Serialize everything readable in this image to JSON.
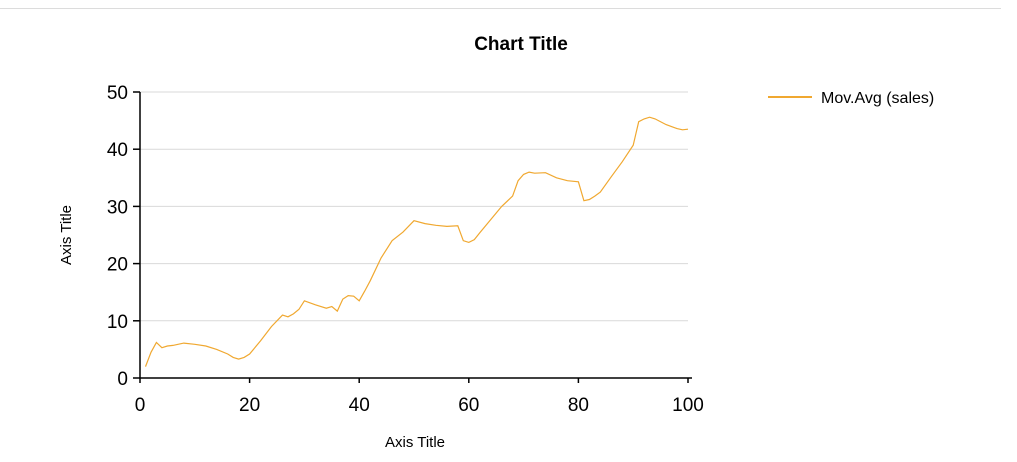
{
  "chart_data": {
    "type": "line",
    "title": "Chart Title",
    "xlabel": "Axis Title",
    "ylabel": "Axis Title",
    "xlim": [
      0,
      100
    ],
    "ylim": [
      0,
      50
    ],
    "xticks": [
      0,
      20,
      40,
      60,
      80,
      100
    ],
    "yticks": [
      0,
      10,
      20,
      30,
      40,
      50
    ],
    "grid": "horizontal",
    "legend_position": "top-right",
    "series": [
      {
        "name": "Mov.Avg (sales)",
        "color": "#f0a830",
        "x": [
          1,
          2,
          3,
          4,
          5,
          6,
          8,
          10,
          12,
          14,
          16,
          17,
          18,
          19,
          20,
          22,
          24,
          26,
          27,
          28,
          29,
          30,
          32,
          34,
          35,
          36,
          37,
          38,
          39,
          40,
          41,
          42,
          44,
          46,
          48,
          50,
          52,
          54,
          56,
          58,
          59,
          60,
          61,
          62,
          64,
          66,
          68,
          69,
          70,
          71,
          72,
          74,
          76,
          78,
          80,
          81,
          82,
          83,
          84,
          86,
          88,
          90,
          91,
          92,
          93,
          94,
          96,
          98,
          99,
          100
        ],
        "values": [
          2,
          4.5,
          6.2,
          5.3,
          5.6,
          5.7,
          6.1,
          5.9,
          5.6,
          5.0,
          4.2,
          3.6,
          3.3,
          3.6,
          4.2,
          6.5,
          9,
          11,
          10.7,
          11.2,
          12,
          13.5,
          12.8,
          12.2,
          12.5,
          11.7,
          13.8,
          14.4,
          14.3,
          13.5,
          15.2,
          17,
          21,
          24,
          25.5,
          27.5,
          27,
          26.7,
          26.5,
          26.6,
          24.0,
          23.7,
          24.2,
          25.4,
          27.7,
          30,
          31.8,
          34.5,
          35.6,
          36,
          35.8,
          35.9,
          35.0,
          34.5,
          34.3,
          31.0,
          31.2,
          31.8,
          32.5,
          35.2,
          37.8,
          40.7,
          44.8,
          45.3,
          45.6,
          45.3,
          44.3,
          43.6,
          43.4,
          43.5
        ]
      }
    ]
  }
}
